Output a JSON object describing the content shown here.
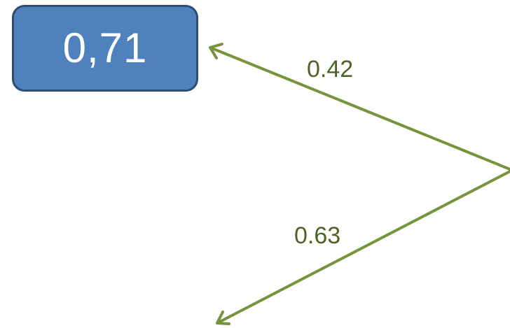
{
  "nodes": [
    {
      "id": "top-left",
      "label": "0,71",
      "fill": "#4f81bd",
      "border": "#2c4d75",
      "text_color": "#ffffff"
    }
  ],
  "edges": [
    {
      "id": "edge-top",
      "label": "0.42"
    },
    {
      "id": "edge-bottom",
      "label": "0.63"
    }
  ],
  "colors": {
    "edge_line": "#77933c",
    "edge_label": "#4f6228"
  }
}
